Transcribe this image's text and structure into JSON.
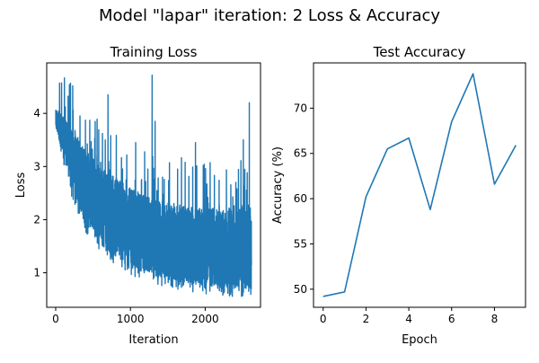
{
  "figure": {
    "suptitle": "Model \"lapar\" iteration: 2 Loss & Accuracy",
    "line_color": "#1f77b4"
  },
  "chart_data": [
    {
      "type": "line",
      "title": "Training Loss",
      "xlabel": "Iteration",
      "ylabel": "Loss",
      "xlim": [
        -120,
        2740
      ],
      "ylim": [
        0.35,
        4.95
      ],
      "xticks": [
        0,
        1000,
        2000
      ],
      "xtick_labels": [
        "0",
        "1000",
        "2000"
      ],
      "yticks": [
        1,
        2,
        3,
        4
      ],
      "ytick_labels": [
        "1",
        "2",
        "3",
        "4"
      ],
      "grid": false,
      "n_points": 2620,
      "trend": {
        "x": [
          0,
          100,
          200,
          300,
          400,
          500,
          600,
          700,
          800,
          900,
          1000,
          1200,
          1400,
          1600,
          1800,
          2000,
          2200,
          2400,
          2620
        ],
        "center": [
          3.95,
          3.7,
          3.35,
          3.05,
          2.8,
          2.6,
          2.42,
          2.28,
          2.15,
          2.02,
          1.92,
          1.75,
          1.62,
          1.52,
          1.45,
          1.4,
          1.36,
          1.33,
          1.32
        ],
        "low": [
          3.75,
          3.2,
          2.6,
          2.2,
          1.9,
          1.75,
          1.55,
          1.4,
          1.3,
          1.2,
          1.1,
          1.0,
          0.9,
          0.85,
          0.8,
          0.75,
          0.72,
          0.7,
          0.7
        ],
        "high": [
          4.1,
          3.95,
          3.7,
          3.5,
          3.3,
          3.15,
          3.0,
          2.9,
          2.8,
          2.7,
          2.6,
          2.45,
          2.35,
          2.3,
          2.25,
          2.2,
          2.2,
          2.25,
          2.3
        ]
      },
      "spikes": [
        {
          "x": 700,
          "y": 4.35
        },
        {
          "x": 1290,
          "y": 4.72
        },
        {
          "x": 2590,
          "y": 4.2
        },
        {
          "x": 1330,
          "y": 3.85
        },
        {
          "x": 1870,
          "y": 3.45
        },
        {
          "x": 2510,
          "y": 3.5
        },
        {
          "x": 1070,
          "y": 3.45
        }
      ]
    },
    {
      "type": "line",
      "title": "Test Accuracy",
      "xlabel": "Epoch",
      "ylabel": "Accuracy (%)",
      "xlim": [
        -0.45,
        9.45
      ],
      "ylim": [
        48.0,
        75.0
      ],
      "xticks": [
        0,
        2,
        4,
        6,
        8
      ],
      "xtick_labels": [
        "0",
        "2",
        "4",
        "6",
        "8"
      ],
      "yticks": [
        50,
        55,
        60,
        65,
        70
      ],
      "ytick_labels": [
        "50",
        "55",
        "60",
        "65",
        "70"
      ],
      "grid": false,
      "x": [
        0,
        1,
        2,
        3,
        4,
        5,
        6,
        7,
        8,
        9
      ],
      "y": [
        49.2,
        49.7,
        60.2,
        65.5,
        66.7,
        58.8,
        68.5,
        73.8,
        61.6,
        65.9
      ]
    }
  ]
}
